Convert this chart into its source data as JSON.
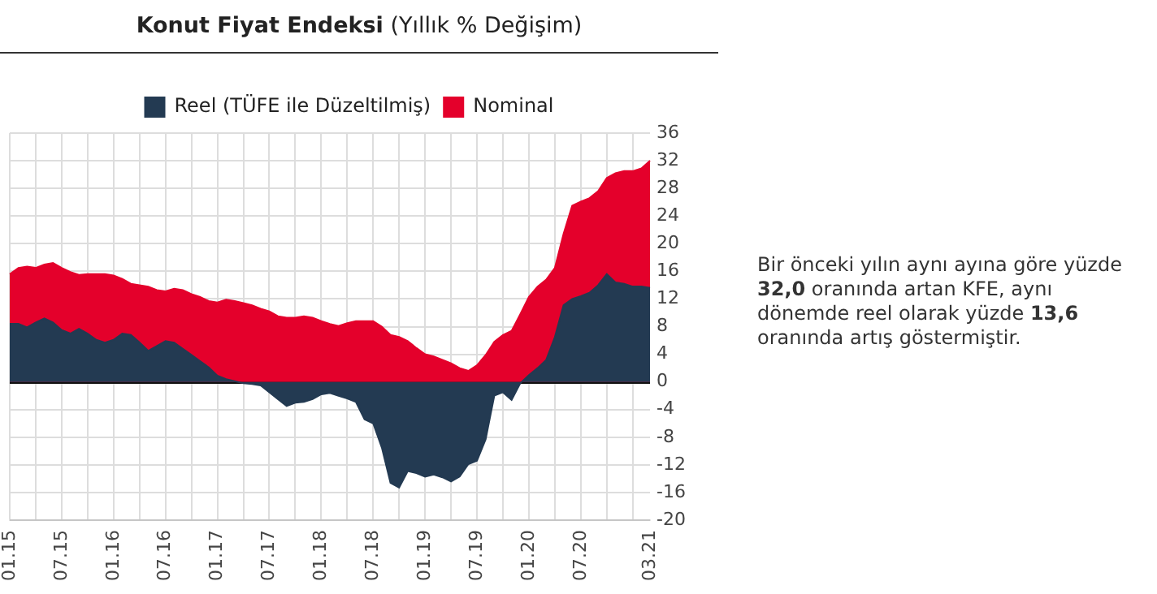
{
  "chart_data": {
    "type": "area",
    "title": "Konut Fiyat Endeksi",
    "subtitle": "(Yıllık % Değişim)",
    "categories": [
      "01.15",
      null,
      null,
      null,
      null,
      null,
      "07.15",
      null,
      null,
      null,
      null,
      null,
      "01.16",
      null,
      null,
      null,
      null,
      null,
      "07.16",
      null,
      null,
      null,
      null,
      null,
      "01.17",
      null,
      null,
      null,
      null,
      null,
      "07.17",
      null,
      null,
      null,
      null,
      null,
      "01.18",
      null,
      null,
      null,
      null,
      null,
      "07.18",
      null,
      null,
      null,
      null,
      null,
      "01.19",
      null,
      null,
      null,
      null,
      null,
      "07.19",
      null,
      null,
      null,
      null,
      null,
      "01.20",
      null,
      null,
      null,
      null,
      null,
      "07.20",
      null,
      null,
      null,
      null,
      null,
      null,
      null,
      "03.21"
    ],
    "series": [
      {
        "name": "Nominal",
        "color": "#e4002b",
        "values": [
          15.6,
          16.5,
          16.7,
          16.5,
          17.0,
          17.2,
          16.5,
          15.9,
          15.5,
          15.6,
          15.6,
          15.6,
          15.4,
          14.9,
          14.2,
          14.0,
          13.8,
          13.3,
          13.1,
          13.5,
          13.3,
          12.7,
          12.3,
          11.7,
          11.5,
          11.9,
          11.7,
          11.4,
          11.1,
          10.6,
          10.2,
          9.5,
          9.3,
          9.3,
          9.5,
          9.3,
          8.8,
          8.4,
          8.1,
          8.5,
          8.8,
          8.8,
          8.8,
          8.0,
          6.8,
          6.5,
          5.9,
          4.9,
          4.0,
          3.7,
          3.2,
          2.7,
          2.0,
          1.6,
          2.4,
          3.9,
          5.8,
          6.8,
          7.4,
          9.8,
          12.3,
          13.8,
          14.8,
          16.5,
          21.4,
          25.5,
          26.1,
          26.6,
          27.6,
          29.5,
          30.2,
          30.5,
          30.5,
          30.9,
          32.0
        ]
      },
      {
        "name": "Reel (TÜFE ile Düzeltilmiş)",
        "color": "#233a52",
        "values": [
          8.4,
          8.4,
          7.9,
          8.6,
          9.2,
          8.6,
          7.5,
          7.0,
          7.7,
          7.0,
          6.1,
          5.7,
          6.1,
          7.0,
          6.8,
          5.7,
          4.5,
          5.2,
          5.9,
          5.7,
          4.8,
          3.9,
          3.0,
          2.1,
          0.9,
          0.4,
          0.1,
          -0.2,
          -0.3,
          -0.5,
          -1.5,
          -2.5,
          -3.5,
          -3.0,
          -2.9,
          -2.5,
          -1.8,
          -1.6,
          -2.0,
          -2.4,
          -2.9,
          -5.4,
          -6.0,
          -9.5,
          -14.6,
          -15.3,
          -12.9,
          -13.2,
          -13.7,
          -13.4,
          -13.8,
          -14.4,
          -13.7,
          -11.9,
          -11.4,
          -8.3,
          -2.0,
          -1.5,
          -2.6,
          -0.2,
          1.0,
          2.0,
          3.2,
          6.5,
          11.1,
          12.0,
          12.4,
          12.9,
          14.0,
          15.6,
          14.4,
          14.2,
          13.8,
          13.8,
          13.6
        ]
      }
    ],
    "ylim": [
      -20,
      36
    ],
    "yticks": [
      36,
      32,
      28,
      24,
      20,
      16,
      12,
      8,
      4,
      0,
      -4,
      -8,
      -12,
      -16,
      -20
    ],
    "grid": true,
    "legend": "top",
    "marker": "none",
    "annotations": [
      "Bir önceki yılın aynı ayına göre yüzde 32,0 oranında artan KFE, aynı dönemde reel olarak yüzde 13,6 oranında artış göstermiştir."
    ]
  }
}
